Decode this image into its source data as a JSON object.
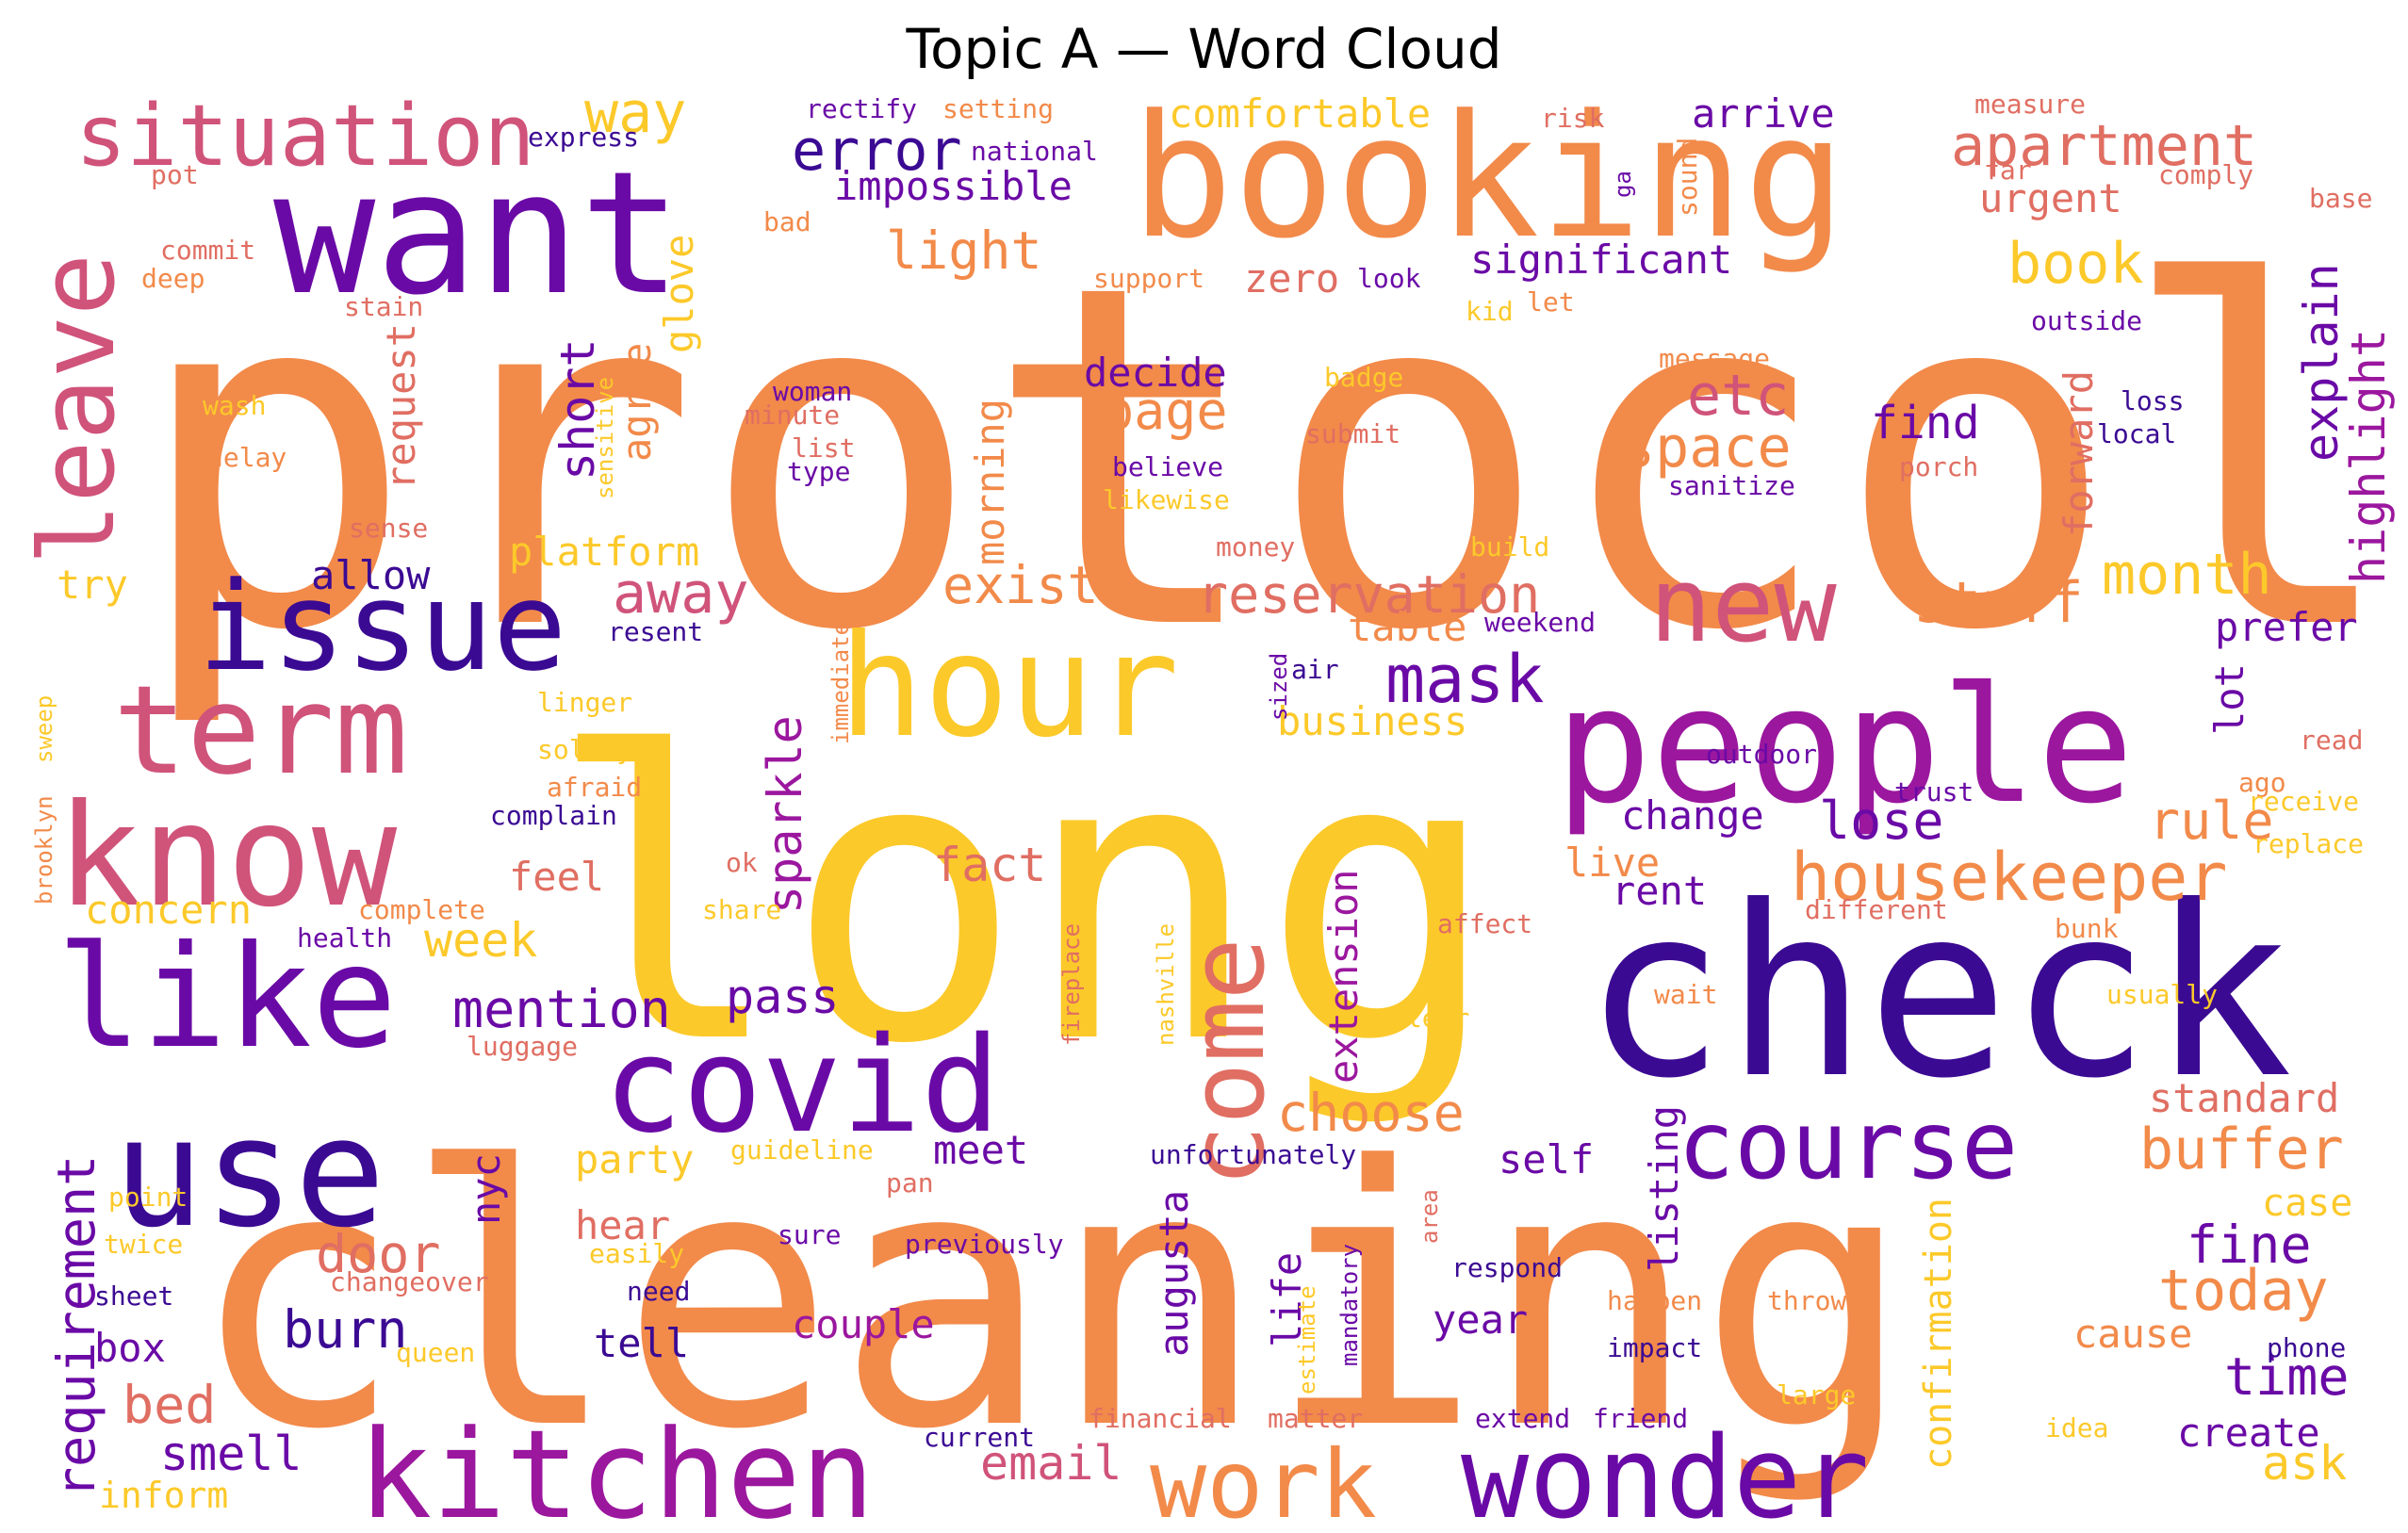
{
  "chart_data": {
    "type": "word_cloud",
    "title": "Topic A — Word Cloud",
    "colormap": "plasma",
    "palette": {
      "A": "#f28a4a",
      "B": "#6a0aa6",
      "C": "#fcc92a",
      "D": "#3b0a93",
      "E": "#d0537a",
      "F": "#9b179e",
      "G": "#e06e62",
      "H": "#f4e43a"
    },
    "words": [
      {
        "text": "protocol",
        "weight": 100,
        "c": "A"
      },
      {
        "text": "cleaning",
        "weight": 95,
        "c": "A"
      },
      {
        "text": "long",
        "weight": 92,
        "c": "C"
      },
      {
        "text": "check",
        "weight": 60,
        "c": "D"
      },
      {
        "text": "booking",
        "weight": 45,
        "c": "A"
      },
      {
        "text": "want",
        "weight": 44,
        "c": "B"
      },
      {
        "text": "people",
        "weight": 42,
        "c": "F"
      },
      {
        "text": "hour",
        "weight": 40,
        "c": "C"
      },
      {
        "text": "use",
        "weight": 38,
        "c": "D"
      },
      {
        "text": "like",
        "weight": 36,
        "c": "B"
      },
      {
        "text": "know",
        "weight": 36,
        "c": "E"
      },
      {
        "text": "covid",
        "weight": 33,
        "c": "B"
      },
      {
        "text": "kitchen",
        "weight": 32,
        "c": "F"
      },
      {
        "text": "term",
        "weight": 31,
        "c": "E"
      },
      {
        "text": "issue",
        "weight": 30,
        "c": "D"
      },
      {
        "text": "wonder",
        "weight": 30,
        "c": "B"
      },
      {
        "text": "come",
        "weight": 28,
        "c": "G"
      },
      {
        "text": "new",
        "weight": 27,
        "c": "E"
      },
      {
        "text": "course",
        "weight": 26,
        "c": "B"
      },
      {
        "text": "work",
        "weight": 26,
        "c": "A"
      },
      {
        "text": "leave",
        "weight": 25,
        "c": "E"
      },
      {
        "text": "situation",
        "weight": 22,
        "c": "E"
      },
      {
        "text": "apartment",
        "weight": 18,
        "c": "G"
      },
      {
        "text": "mask",
        "weight": 18,
        "c": "B"
      },
      {
        "text": "housekeeper",
        "weight": 18,
        "c": "A"
      },
      {
        "text": "error",
        "weight": 17,
        "c": "D"
      },
      {
        "text": "reservation",
        "weight": 16,
        "c": "G"
      },
      {
        "text": "stuff",
        "weight": 16,
        "c": "A"
      },
      {
        "text": "space",
        "weight": 16,
        "c": "A"
      },
      {
        "text": "buffer",
        "weight": 16,
        "c": "A"
      },
      {
        "text": "month",
        "weight": 16,
        "c": "C"
      },
      {
        "text": "way",
        "weight": 15,
        "c": "C"
      },
      {
        "text": "etc",
        "weight": 15,
        "c": "E"
      },
      {
        "text": "away",
        "weight": 15,
        "c": "E"
      },
      {
        "text": "book",
        "weight": 15,
        "c": "C"
      },
      {
        "text": "requirement",
        "weight": 15,
        "c": "B"
      },
      {
        "text": "today",
        "weight": 15,
        "c": "A"
      },
      {
        "text": "choose",
        "weight": 15,
        "c": "A"
      },
      {
        "text": "mention",
        "weight": 14,
        "c": "B"
      },
      {
        "text": "light",
        "weight": 14,
        "c": "A"
      },
      {
        "text": "page",
        "weight": 14,
        "c": "A"
      },
      {
        "text": "explain",
        "weight": 14,
        "c": "B"
      },
      {
        "text": "highlight",
        "weight": 14,
        "c": "F"
      },
      {
        "text": "exist",
        "weight": 14,
        "c": "A"
      },
      {
        "text": "rule",
        "weight": 14,
        "c": "A"
      },
      {
        "text": "lose",
        "weight": 14,
        "c": "B"
      },
      {
        "text": "sparkle",
        "weight": 14,
        "c": "F"
      },
      {
        "text": "door",
        "weight": 14,
        "c": "G"
      },
      {
        "text": "burn",
        "weight": 14,
        "c": "D"
      },
      {
        "text": "bed",
        "weight": 14,
        "c": "G"
      },
      {
        "text": "smell",
        "weight": 14,
        "c": "B"
      },
      {
        "text": "email",
        "weight": 14,
        "c": "E"
      },
      {
        "text": "fine",
        "weight": 14,
        "c": "B"
      },
      {
        "text": "time",
        "weight": 14,
        "c": "B"
      },
      {
        "text": "fact",
        "weight": 13,
        "c": "G"
      },
      {
        "text": "week",
        "weight": 13,
        "c": "C"
      },
      {
        "text": "short",
        "weight": 13,
        "c": "B"
      },
      {
        "text": "impossible",
        "weight": 12,
        "c": "B"
      },
      {
        "text": "comfortable",
        "weight": 12,
        "c": "C"
      },
      {
        "text": "urgent",
        "weight": 12,
        "c": "G"
      },
      {
        "text": "arrive",
        "weight": 12,
        "c": "B"
      },
      {
        "text": "significant",
        "weight": 12,
        "c": "B"
      },
      {
        "text": "decide",
        "weight": 12,
        "c": "B"
      },
      {
        "text": "find",
        "weight": 12,
        "c": "B"
      },
      {
        "text": "forward",
        "weight": 12,
        "c": "G"
      },
      {
        "text": "platform",
        "weight": 12,
        "c": "C"
      },
      {
        "text": "allow",
        "weight": 12,
        "c": "D"
      },
      {
        "text": "try",
        "weight": 12,
        "c": "C"
      },
      {
        "text": "agree",
        "weight": 12,
        "c": "A"
      },
      {
        "text": "request",
        "weight": 12,
        "c": "G"
      },
      {
        "text": "glove",
        "weight": 12,
        "c": "C"
      },
      {
        "text": "zero",
        "weight": 12,
        "c": "G"
      },
      {
        "text": "morning",
        "weight": 12,
        "c": "A"
      },
      {
        "text": "table",
        "weight": 12,
        "c": "A"
      },
      {
        "text": "business",
        "weight": 12,
        "c": "C"
      },
      {
        "text": "prefer",
        "weight": 12,
        "c": "B"
      },
      {
        "text": "lot",
        "weight": 12,
        "c": "B"
      },
      {
        "text": "change",
        "weight": 12,
        "c": "B"
      },
      {
        "text": "live",
        "weight": 12,
        "c": "A"
      },
      {
        "text": "rent",
        "weight": 12,
        "c": "B"
      },
      {
        "text": "feel",
        "weight": 12,
        "c": "G"
      },
      {
        "text": "concern",
        "weight": 12,
        "c": "C"
      },
      {
        "text": "pass",
        "weight": 12,
        "c": "B"
      },
      {
        "text": "extension",
        "weight": 12,
        "c": "F"
      },
      {
        "text": "self",
        "weight": 12,
        "c": "B"
      },
      {
        "text": "standard",
        "weight": 12,
        "c": "G"
      },
      {
        "text": "party",
        "weight": 12,
        "c": "C"
      },
      {
        "text": "meet",
        "weight": 12,
        "c": "B"
      },
      {
        "text": "nyc",
        "weight": 12,
        "c": "B"
      },
      {
        "text": "listing",
        "weight": 12,
        "c": "B"
      },
      {
        "text": "augusta",
        "weight": 12,
        "c": "B"
      },
      {
        "text": "life",
        "weight": 12,
        "c": "B"
      },
      {
        "text": "hear",
        "weight": 12,
        "c": "G"
      },
      {
        "text": "confirmation",
        "weight": 12,
        "c": "C"
      },
      {
        "text": "case",
        "weight": 12,
        "c": "C"
      },
      {
        "text": "year",
        "weight": 12,
        "c": "B"
      },
      {
        "text": "tell",
        "weight": 12,
        "c": "D"
      },
      {
        "text": "couple",
        "weight": 12,
        "c": "F"
      },
      {
        "text": "cause",
        "weight": 12,
        "c": "A"
      },
      {
        "text": "box",
        "weight": 12,
        "c": "B"
      },
      {
        "text": "create",
        "weight": 12,
        "c": "B"
      },
      {
        "text": "ask",
        "weight": 12,
        "c": "C"
      },
      {
        "text": "inform",
        "weight": 12,
        "c": "C"
      },
      {
        "text": "rectify",
        "weight": 8,
        "c": "B"
      },
      {
        "text": "setting",
        "weight": 8,
        "c": "A"
      },
      {
        "text": "express",
        "weight": 8,
        "c": "D"
      },
      {
        "text": "national",
        "weight": 8,
        "c": "B"
      },
      {
        "text": "risk",
        "weight": 8,
        "c": "G"
      },
      {
        "text": "measure",
        "weight": 8,
        "c": "G"
      },
      {
        "text": "far",
        "weight": 8,
        "c": "G"
      },
      {
        "text": "comply",
        "weight": 8,
        "c": "G"
      },
      {
        "text": "pot",
        "weight": 8,
        "c": "G"
      },
      {
        "text": "bad",
        "weight": 8,
        "c": "A"
      },
      {
        "text": "base",
        "weight": 8,
        "c": "G"
      },
      {
        "text": "ga",
        "weight": 8,
        "c": "B"
      },
      {
        "text": "sound",
        "weight": 8,
        "c": "A"
      },
      {
        "text": "commit",
        "weight": 8,
        "c": "G"
      },
      {
        "text": "deep",
        "weight": 8,
        "c": "A"
      },
      {
        "text": "support",
        "weight": 8,
        "c": "A"
      },
      {
        "text": "look",
        "weight": 8,
        "c": "B"
      },
      {
        "text": "let",
        "weight": 8,
        "c": "A"
      },
      {
        "text": "kid",
        "weight": 8,
        "c": "C"
      },
      {
        "text": "stain",
        "weight": 8,
        "c": "G"
      },
      {
        "text": "outside",
        "weight": 8,
        "c": "B"
      },
      {
        "text": "message",
        "weight": 8,
        "c": "A"
      },
      {
        "text": "badge",
        "weight": 8,
        "c": "C"
      },
      {
        "text": "woman",
        "weight": 8,
        "c": "B"
      },
      {
        "text": "minute",
        "weight": 8,
        "c": "G"
      },
      {
        "text": "wash",
        "weight": 8,
        "c": "C"
      },
      {
        "text": "loss",
        "weight": 8,
        "c": "D"
      },
      {
        "text": "local",
        "weight": 8,
        "c": "D"
      },
      {
        "text": "submit",
        "weight": 8,
        "c": "G"
      },
      {
        "text": "list",
        "weight": 8,
        "c": "G"
      },
      {
        "text": "type",
        "weight": 8,
        "c": "B"
      },
      {
        "text": "delay",
        "weight": 8,
        "c": "A"
      },
      {
        "text": "sensitive",
        "weight": 8,
        "c": "C"
      },
      {
        "text": "believe",
        "weight": 8,
        "c": "B"
      },
      {
        "text": "porch",
        "weight": 8,
        "c": "G"
      },
      {
        "text": "sanitize",
        "weight": 8,
        "c": "B"
      },
      {
        "text": "likewise",
        "weight": 8,
        "c": "C"
      },
      {
        "text": "sense",
        "weight": 8,
        "c": "G"
      },
      {
        "text": "money",
        "weight": 8,
        "c": "G"
      },
      {
        "text": "build",
        "weight": 8,
        "c": "C"
      },
      {
        "text": "resent",
        "weight": 8,
        "c": "D"
      },
      {
        "text": "weekend",
        "weight": 8,
        "c": "B"
      },
      {
        "text": "immediate",
        "weight": 8,
        "c": "A"
      },
      {
        "text": "sized",
        "weight": 8,
        "c": "B"
      },
      {
        "text": "air",
        "weight": 8,
        "c": "D"
      },
      {
        "text": "read",
        "weight": 8,
        "c": "G"
      },
      {
        "text": "sweep",
        "weight": 8,
        "c": "C"
      },
      {
        "text": "linger",
        "weight": 8,
        "c": "C"
      },
      {
        "text": "brooklyn",
        "weight": 8,
        "c": "A"
      },
      {
        "text": "solely",
        "weight": 8,
        "c": "C"
      },
      {
        "text": "afraid",
        "weight": 8,
        "c": "A"
      },
      {
        "text": "outdoor",
        "weight": 8,
        "c": "B"
      },
      {
        "text": "trust",
        "weight": 8,
        "c": "B"
      },
      {
        "text": "ago",
        "weight": 8,
        "c": "A"
      },
      {
        "text": "receive",
        "weight": 8,
        "c": "C"
      },
      {
        "text": "complain",
        "weight": 8,
        "c": "D"
      },
      {
        "text": "replace",
        "weight": 8,
        "c": "C"
      },
      {
        "text": "ok",
        "weight": 8,
        "c": "G"
      },
      {
        "text": "complete",
        "weight": 8,
        "c": "A"
      },
      {
        "text": "share",
        "weight": 8,
        "c": "C"
      },
      {
        "text": "fireplace",
        "weight": 8,
        "c": "G"
      },
      {
        "text": "different",
        "weight": 8,
        "c": "G"
      },
      {
        "text": "affect",
        "weight": 8,
        "c": "G"
      },
      {
        "text": "bunk",
        "weight": 8,
        "c": "A"
      },
      {
        "text": "health",
        "weight": 8,
        "c": "B"
      },
      {
        "text": "nashville",
        "weight": 8,
        "c": "C"
      },
      {
        "text": "wait",
        "weight": 8,
        "c": "A"
      },
      {
        "text": "usually",
        "weight": 8,
        "c": "C"
      },
      {
        "text": "clear",
        "weight": 8,
        "c": "C"
      },
      {
        "text": "luggage",
        "weight": 8,
        "c": "G"
      },
      {
        "text": "guideline",
        "weight": 8,
        "c": "C"
      },
      {
        "text": "unfortunately",
        "weight": 8,
        "c": "D"
      },
      {
        "text": "point",
        "weight": 8,
        "c": "C"
      },
      {
        "text": "pan",
        "weight": 8,
        "c": "G"
      },
      {
        "text": "area",
        "weight": 8,
        "c": "G"
      },
      {
        "text": "twice",
        "weight": 8,
        "c": "C"
      },
      {
        "text": "sure",
        "weight": 8,
        "c": "B"
      },
      {
        "text": "previously",
        "weight": 8,
        "c": "B"
      },
      {
        "text": "easily",
        "weight": 8,
        "c": "C"
      },
      {
        "text": "mandatory",
        "weight": 8,
        "c": "B"
      },
      {
        "text": "estimate",
        "weight": 8,
        "c": "C"
      },
      {
        "text": "respond",
        "weight": 8,
        "c": "D"
      },
      {
        "text": "sheet",
        "weight": 8,
        "c": "D"
      },
      {
        "text": "changeover",
        "weight": 8,
        "c": "G"
      },
      {
        "text": "need",
        "weight": 8,
        "c": "D"
      },
      {
        "text": "happen",
        "weight": 8,
        "c": "A"
      },
      {
        "text": "throw",
        "weight": 8,
        "c": "A"
      },
      {
        "text": "queen",
        "weight": 8,
        "c": "C"
      },
      {
        "text": "impact",
        "weight": 8,
        "c": "D"
      },
      {
        "text": "phone",
        "weight": 8,
        "c": "D"
      },
      {
        "text": "large",
        "weight": 8,
        "c": "C"
      },
      {
        "text": "financial",
        "weight": 8,
        "c": "G"
      },
      {
        "text": "matter",
        "weight": 8,
        "c": "G"
      },
      {
        "text": "current",
        "weight": 8,
        "c": "D"
      },
      {
        "text": "extend",
        "weight": 8,
        "c": "B"
      },
      {
        "text": "friend",
        "weight": 8,
        "c": "B"
      },
      {
        "text": "idea",
        "weight": 8,
        "c": "C"
      }
    ]
  }
}
